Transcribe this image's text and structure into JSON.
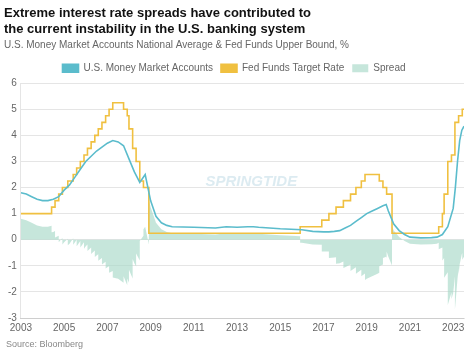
{
  "chart_data": {
    "type": "line",
    "title": [
      "Extreme interest rate spreads have contributed to",
      "the current instability in the U.S. banking system"
    ],
    "subtitle": "U.S. Money Market Accounts National Average & Fed Funds Upper Bound, %",
    "source": "Source: Bloomberg",
    "watermark": "SPRINGTIDE",
    "series": [
      {
        "name": "Spread",
        "type": "area",
        "color": "#a8d8c8",
        "x": [
          2003.0,
          2003.25,
          2003.5,
          2003.75,
          2004.0,
          2004.25,
          2004.42,
          2004.42,
          2004.5,
          2004.58,
          2004.58,
          2004.75,
          2004.75,
          2004.92,
          2004.92,
          2005.0,
          2005.17,
          2005.17,
          2005.25,
          2005.42,
          2005.42,
          2005.5,
          2005.58,
          2005.58,
          2005.75,
          2005.75,
          2005.92,
          2005.92,
          2006.0,
          2006.08,
          2006.08,
          2006.25,
          2006.25,
          2006.42,
          2006.42,
          2006.5,
          2006.58,
          2006.58,
          2006.75,
          2006.75,
          2006.92,
          2006.92,
          2007.0,
          2007.08,
          2007.08,
          2007.25,
          2007.25,
          2007.5,
          2007.75,
          2007.75,
          2007.92,
          2007.92,
          2008.0,
          2008.0,
          2008.17,
          2008.17,
          2008.25,
          2008.33,
          2008.33,
          2008.5,
          2008.5,
          2008.67,
          2008.67,
          2008.75,
          2008.92,
          2008.92,
          2009.0,
          2009.25,
          2009.5,
          2009.75,
          2010.0,
          2011.0,
          2012.0,
          2012.5,
          2013.0,
          2013.5,
          2013.75,
          2014.0,
          2014.5,
          2015.0,
          2015.5,
          2015.92,
          2015.92,
          2016.0,
          2016.5,
          2016.92,
          2016.92,
          2017.0,
          2017.25,
          2017.25,
          2017.5,
          2017.58,
          2017.58,
          2017.75,
          2017.92,
          2017.92,
          2018.0,
          2018.25,
          2018.25,
          2018.5,
          2018.5,
          2018.75,
          2018.75,
          2018.92,
          2018.92,
          2019.0,
          2019.25,
          2019.5,
          2019.58,
          2019.58,
          2019.75,
          2019.75,
          2019.9,
          2019.92,
          2019.92,
          2020.0,
          2020.17,
          2020.17,
          2020.25,
          2020.5,
          2020.75,
          2021.0,
          2021.5,
          2022.0,
          2022.25,
          2022.33,
          2022.33,
          2022.5,
          2022.5,
          2022.58,
          2022.58,
          2022.75,
          2022.75,
          2022.92,
          2022.92,
          2023.0,
          2023.08,
          2023.08,
          2023.1,
          2023.2,
          2023.25,
          2023.25,
          2023.3,
          2023.4,
          2023.42,
          2023.42,
          2023.5
        ],
        "values": [
          0.8,
          0.75,
          0.65,
          0.55,
          0.5,
          0.5,
          0.534,
          0.284,
          0.3,
          0.332,
          0.082,
          0.15,
          -0.1,
          0.07,
          -0.18,
          -0.1,
          0.036,
          -0.214,
          -0.15,
          0.054,
          -0.196,
          -0.1,
          -0.004,
          -0.254,
          -0.05,
          -0.3,
          -0.096,
          -0.346,
          -0.25,
          -0.186,
          -0.436,
          -0.3,
          -0.55,
          -0.414,
          -0.664,
          -0.6,
          -0.552,
          -0.802,
          -0.7,
          -0.95,
          -0.848,
          -1.098,
          -1.05,
          -1.018,
          -1.268,
          -1.2,
          -1.45,
          -1.5,
          -1.65,
          -1.4,
          -1.74,
          -1.49,
          -1.65,
          -1.15,
          -1.49,
          -0.74,
          -0.9,
          -1.028,
          -0.528,
          -0.8,
          -0.05,
          0.154,
          0.404,
          0.5,
          -0.18,
          1.57,
          1.25,
          0.65,
          0.4,
          0.3,
          0.25,
          0.23,
          0.2,
          0.25,
          0.23,
          0.25,
          0.25,
          0.23,
          0.2,
          0.17,
          0.15,
          0.1332,
          -0.1168,
          -0.12,
          -0.18,
          -0.1968,
          -0.4468,
          -0.45,
          -0.45,
          -0.7,
          -0.68,
          -0.6704,
          -0.9204,
          -0.9,
          -0.832,
          -1.082,
          -1.05,
          -0.95,
          -1.2,
          -1.05,
          -1.3,
          -1.15,
          -1.4,
          -1.298,
          -1.548,
          -1.5,
          -1.4,
          -1.3,
          -1.268,
          -1.018,
          -0.95,
          -0.7,
          -0.65,
          -0.7,
          -0.45,
          -0.65,
          -0.99,
          0.51,
          0.35,
          0.1,
          -0.05,
          -0.15,
          -0.18,
          -0.17,
          -0.15,
          -0.118,
          -0.368,
          -0.3,
          -0.8,
          -0.704,
          -1.454,
          -1.25,
          -2.5,
          -2.024,
          -2.274,
          -2.05,
          -1.41,
          -2.66,
          -2.5,
          -1.5,
          -1.1,
          -1.35,
          -0.95,
          -0.55,
          -0.52,
          -0.77,
          -0.65
        ]
      },
      {
        "name": "Fed Funds Target Rate",
        "type": "step",
        "color": "#f0c040",
        "x": [
          2003.0,
          2004.42,
          2004.58,
          2004.75,
          2004.92,
          2005.17,
          2005.42,
          2005.58,
          2005.75,
          2005.92,
          2006.08,
          2006.25,
          2006.42,
          2006.58,
          2006.75,
          2006.92,
          2007.08,
          2007.25,
          2007.75,
          2007.92,
          2008.0,
          2008.17,
          2008.33,
          2008.5,
          2008.67,
          2008.92,
          2015.92,
          2016.92,
          2017.25,
          2017.58,
          2017.92,
          2018.25,
          2018.5,
          2018.75,
          2018.92,
          2019.58,
          2019.75,
          2019.92,
          2020.17,
          2022.33,
          2022.5,
          2022.58,
          2022.75,
          2022.92,
          2023.08,
          2023.25,
          2023.42,
          2023.5
        ],
        "values": [
          1.0,
          1.25,
          1.5,
          1.75,
          2.0,
          2.25,
          2.5,
          2.75,
          3.0,
          3.25,
          3.5,
          3.75,
          4.0,
          4.25,
          4.5,
          4.75,
          5.0,
          5.25,
          5.0,
          4.75,
          4.25,
          3.5,
          3.0,
          2.25,
          2.0,
          0.25,
          0.5,
          0.75,
          1.0,
          1.25,
          1.5,
          1.75,
          2.0,
          2.25,
          2.5,
          2.25,
          2.0,
          1.75,
          0.25,
          0.5,
          1.0,
          1.75,
          3.0,
          3.25,
          4.5,
          4.75,
          5.0,
          5.0
        ]
      },
      {
        "name": "U.S. Money Market Accounts",
        "type": "line",
        "color": "#5bbccc",
        "x": [
          2003.0,
          2003.25,
          2003.5,
          2003.75,
          2004.0,
          2004.25,
          2004.5,
          2004.75,
          2005.0,
          2005.25,
          2005.5,
          2005.75,
          2006.0,
          2006.25,
          2006.5,
          2006.75,
          2007.0,
          2007.25,
          2007.5,
          2007.75,
          2008.0,
          2008.25,
          2008.5,
          2008.75,
          2009.0,
          2009.25,
          2009.5,
          2009.75,
          2010.0,
          2011.0,
          2012.0,
          2012.5,
          2013.0,
          2013.5,
          2013.75,
          2014.0,
          2014.5,
          2015.0,
          2015.5,
          2016.0,
          2016.5,
          2017.0,
          2017.25,
          2017.5,
          2017.75,
          2018.0,
          2018.25,
          2018.5,
          2018.75,
          2019.0,
          2019.25,
          2019.5,
          2019.75,
          2019.9,
          2020.0,
          2020.25,
          2020.5,
          2020.75,
          2021.0,
          2021.5,
          2022.0,
          2022.25,
          2022.5,
          2022.75,
          2023.0,
          2023.1,
          2023.2,
          2023.3,
          2023.4,
          2023.5
        ],
        "values": [
          1.8,
          1.75,
          1.65,
          1.55,
          1.5,
          1.5,
          1.55,
          1.65,
          1.9,
          2.1,
          2.4,
          2.7,
          3.0,
          3.2,
          3.4,
          3.55,
          3.7,
          3.8,
          3.75,
          3.6,
          3.1,
          2.6,
          2.2,
          2.5,
          1.5,
          0.9,
          0.65,
          0.55,
          0.5,
          0.48,
          0.45,
          0.5,
          0.48,
          0.5,
          0.5,
          0.48,
          0.45,
          0.42,
          0.4,
          0.38,
          0.32,
          0.3,
          0.3,
          0.32,
          0.35,
          0.45,
          0.55,
          0.7,
          0.85,
          1.0,
          1.1,
          1.2,
          1.3,
          1.35,
          1.1,
          0.6,
          0.35,
          0.2,
          0.1,
          0.07,
          0.08,
          0.1,
          0.2,
          0.5,
          1.2,
          2.0,
          3.0,
          3.8,
          4.2,
          4.35
        ]
      }
    ],
    "xlim": [
      2003,
      2023.5
    ],
    "xticks": [
      2003,
      2005,
      2007,
      2009,
      2011,
      2013,
      2015,
      2017,
      2019,
      2021,
      2023
    ],
    "ylim": [
      -3,
      6
    ],
    "yticks": [
      -3,
      -2,
      -1,
      0,
      1,
      2,
      3,
      4,
      5,
      6
    ],
    "grid": "y",
    "legend": "top"
  }
}
